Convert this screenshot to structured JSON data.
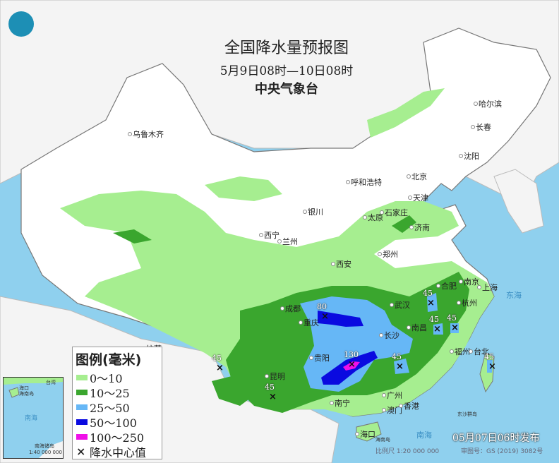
{
  "header": {
    "title": "全国降水量预报图",
    "period": "5月9日08时—10日08时",
    "issuer": "中央气象台"
  },
  "logo": {
    "icon": "cma-logo-icon"
  },
  "legend": {
    "title": "图例(毫米)",
    "items": [
      {
        "label": "0～10",
        "color": "#a6ee90"
      },
      {
        "label": "10～25",
        "color": "#3aa62e"
      },
      {
        "label": "25～50",
        "color": "#66b7f6"
      },
      {
        "label": "50～100",
        "color": "#0a0ae0"
      },
      {
        "label": "100～250",
        "color": "#f010e8"
      }
    ],
    "center_label": "降水中心值"
  },
  "cities": [
    "乌鲁木齐",
    "哈尔滨",
    "长春",
    "沈阳",
    "北京",
    "天津",
    "呼和浩特",
    "石家庄",
    "太原",
    "济南",
    "银川",
    "西宁",
    "兰州",
    "郑州",
    "西安",
    "合肥",
    "南京",
    "上海",
    "杭州",
    "武汉",
    "成都",
    "重庆",
    "长沙",
    "南昌",
    "福州",
    "台北",
    "拉萨",
    "贵阳",
    "昆明",
    "南宁",
    "广州",
    "澳门",
    "香港",
    "海口"
  ],
  "precip_centers": [
    "80",
    "130",
    "45",
    "45",
    "45",
    "45",
    "45",
    "45",
    "45"
  ],
  "seas": {
    "east_sea": "东海",
    "south_sea": "南海",
    "dongsha": "东沙群岛",
    "hainan": "海南岛"
  },
  "inset": {
    "sea": "南海",
    "islands": "南海诸岛",
    "scale": "1:40 000 000",
    "haikou": "海口",
    "hainan": "海南岛",
    "taiwan": "台湾"
  },
  "footer": {
    "issue_time": "05月07日06时发布",
    "scale": "比例尺 1:20 000 000",
    "review_no": "审图号：GS (2019) 3082号"
  }
}
